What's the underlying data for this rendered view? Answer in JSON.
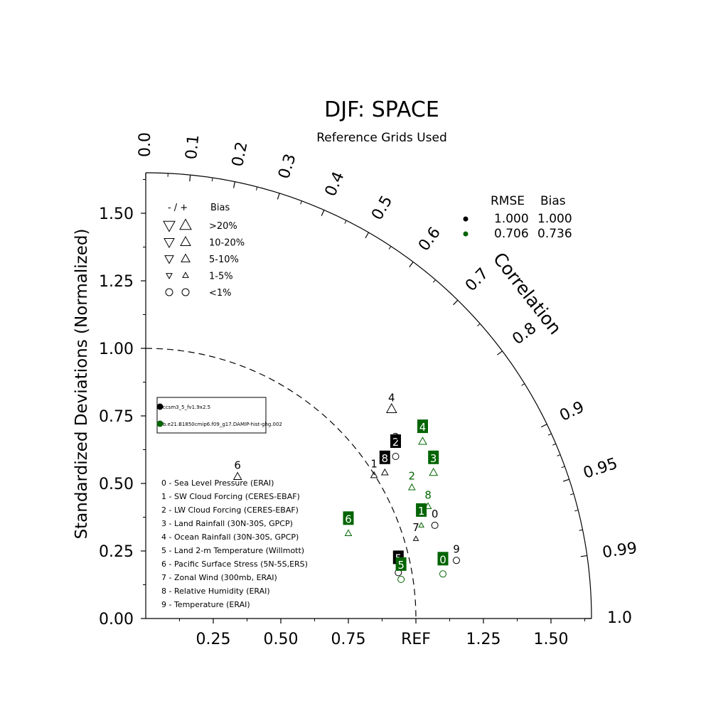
{
  "chart_data": {
    "type": "scatter",
    "title": "DJF: SPACE",
    "subtitle": "Reference Grids Used",
    "ylabel": "Standardized Deviations (Normalized)",
    "arc_label": "Correlation",
    "ylim": [
      0,
      1.65
    ],
    "xlim": [
      0,
      1.65
    ],
    "y_ticks": [
      "0.00",
      "0.25",
      "0.50",
      "0.75",
      "1.00",
      "1.25",
      "1.50"
    ],
    "x_ticks": [
      "0.25",
      "0.50",
      "0.75",
      "REF",
      "1.25",
      "1.50"
    ],
    "correlation_labels": [
      "0.0",
      "0.1",
      "0.2",
      "0.3",
      "0.4",
      "0.5",
      "0.6",
      "0.7",
      "0.8",
      "0.9",
      "0.95",
      "0.99",
      "1.0"
    ],
    "reference_arc_radius": 1.0,
    "bias_legend": {
      "header_sign": "- / +",
      "header": "Bias",
      "rows": [
        ">20%",
        "10-20%",
        "5-10%",
        "1-5%",
        "<1%"
      ]
    },
    "score_table": {
      "headers": [
        "RMSE",
        "Bias"
      ],
      "rows": [
        {
          "color": "#000000",
          "rmse": "1.000",
          "bias": "1.000"
        },
        {
          "color": "#006400",
          "rmse": "0.706",
          "bias": "0.736"
        }
      ]
    },
    "case_legend": [
      {
        "name": "ccsm3_5_fv1.9x2.5",
        "color": "#000000"
      },
      {
        "name": "b.e21.B1850cmip6.f09_g17.DAMIP-hist-ghg.002",
        "color": "#006400"
      }
    ],
    "variables": [
      "0 - Sea Level Pressure (ERAI)",
      "1 - SW Cloud Forcing (CERES-EBAF)",
      "2 - LW Cloud Forcing (CERES-EBAF)",
      "3 - Land Rainfall (30N-30S, GPCP)",
      "4 - Ocean Rainfall (30N-30S, GPCP)",
      "5 - Land 2-m Temperature (Willmott)",
      "6 - Pacific Surface Stress (5N-5S,ERS)",
      "7 - Zonal Wind (300mb, ERAI)",
      "8 - Relative Humidity (ERAI)",
      "9 - Temperature (ERAI)"
    ],
    "series": [
      {
        "color": "#000000",
        "points": [
          {
            "label": "0",
            "x": 1.07,
            "y": 0.345,
            "marker": "circle",
            "style": "plain"
          },
          {
            "label": "1",
            "x": 0.845,
            "y": 0.53,
            "marker": "up-small",
            "style": "plain"
          },
          {
            "label": "2",
            "x": 0.925,
            "y": 0.6,
            "marker": "circle",
            "style": "box"
          },
          {
            "label": "3",
            "x": 0.925,
            "y": 0.6,
            "marker": "none",
            "style": "plain-above"
          },
          {
            "label": "4",
            "x": 0.91,
            "y": 0.775,
            "marker": "up-large",
            "style": "plain"
          },
          {
            "label": "5",
            "x": 0.935,
            "y": 0.17,
            "marker": "circle",
            "style": "box"
          },
          {
            "label": "6",
            "x": 0.34,
            "y": 0.525,
            "marker": "up-medium",
            "style": "plain"
          },
          {
            "label": "7",
            "x": 1.0,
            "y": 0.295,
            "marker": "up-tiny",
            "style": "plain"
          },
          {
            "label": "8",
            "x": 0.885,
            "y": 0.54,
            "marker": "up-small",
            "style": "box"
          },
          {
            "label": "9",
            "x": 1.15,
            "y": 0.215,
            "marker": "circle",
            "style": "plain"
          }
        ]
      },
      {
        "color": "#006400",
        "points": [
          {
            "label": "0",
            "x": 1.1,
            "y": 0.165,
            "marker": "circle",
            "style": "box"
          },
          {
            "label": "1",
            "x": 1.02,
            "y": 0.345,
            "marker": "up-tiny",
            "style": "box"
          },
          {
            "label": "2",
            "x": 0.985,
            "y": 0.485,
            "marker": "up-small",
            "style": "plain"
          },
          {
            "label": "3",
            "x": 1.065,
            "y": 0.54,
            "marker": "up-medium",
            "style": "box"
          },
          {
            "label": "4",
            "x": 1.025,
            "y": 0.655,
            "marker": "up-medium",
            "style": "box"
          },
          {
            "label": "5",
            "x": 0.945,
            "y": 0.145,
            "marker": "circle",
            "style": "box"
          },
          {
            "label": "6",
            "x": 0.75,
            "y": 0.315,
            "marker": "up-small",
            "style": "box"
          },
          {
            "label": "8",
            "x": 1.045,
            "y": 0.415,
            "marker": "up-small",
            "style": "plain"
          }
        ]
      }
    ]
  }
}
